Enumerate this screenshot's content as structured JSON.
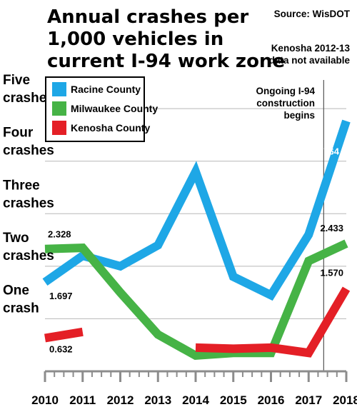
{
  "title_lines": [
    "Annual crashes per",
    "1,000 vehicles in",
    "current I-94 work zone"
  ],
  "source": "Source: WisDOT",
  "footnote_lines": [
    "Kenosha 2012-13",
    "data not available"
  ],
  "annotation_lines": [
    "Ongoing I-94",
    "construction",
    "begins"
  ],
  "chart_data": {
    "type": "line",
    "title": "Annual crashes per 1,000 vehicles in current I-94 work zone",
    "xlabel": "",
    "ylabel": "",
    "x": [
      2010,
      2011,
      2012,
      2013,
      2014,
      2015,
      2016,
      2017,
      2018
    ],
    "ylim": [
      0,
      5.6
    ],
    "y_ticks": [
      {
        "value": 5,
        "lines": [
          "Five",
          "crashes"
        ]
      },
      {
        "value": 4,
        "lines": [
          "Four",
          "crashes"
        ]
      },
      {
        "value": 3,
        "lines": [
          "Three",
          "crashes"
        ]
      },
      {
        "value": 2,
        "lines": [
          "Two",
          "crashes"
        ]
      },
      {
        "value": 1,
        "lines": [
          "One",
          "crash"
        ]
      }
    ],
    "grid": true,
    "legend_position": "top-left",
    "annotation_x": 2017.4,
    "series": [
      {
        "name": "Racine County",
        "color": "#1ea7e6",
        "values": [
          1.697,
          2.2,
          2.0,
          2.4,
          3.8,
          1.8,
          1.45,
          2.6,
          4.764
        ],
        "labels": [
          {
            "index": 0,
            "text": "1.697"
          },
          {
            "index": 8,
            "text": "4.764"
          }
        ]
      },
      {
        "name": "Milwaukee County",
        "color": "#46b346",
        "values": [
          2.328,
          2.35,
          1.5,
          0.7,
          0.3,
          0.35,
          0.35,
          2.1,
          2.433
        ],
        "labels": [
          {
            "index": 0,
            "text": "2.328"
          },
          {
            "index": 8,
            "text": "2.433"
          }
        ]
      },
      {
        "name": "Kenosha County",
        "color": "#e41f26",
        "values": [
          0.632,
          0.75,
          null,
          null,
          0.45,
          0.43,
          0.45,
          0.35,
          1.57
        ],
        "labels": [
          {
            "index": 0,
            "text": "0.632"
          },
          {
            "index": 8,
            "text": "1.570"
          }
        ]
      }
    ]
  }
}
